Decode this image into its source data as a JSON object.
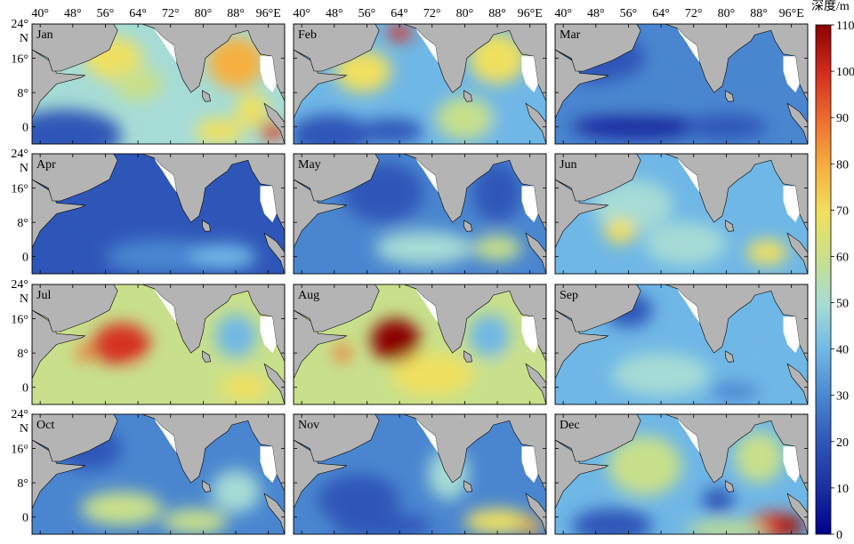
{
  "figure": {
    "x_tick_labels": [
      "40°",
      "48°",
      "56°",
      "64°",
      "72°",
      "80°",
      "88°",
      "96°E"
    ],
    "y_tick_labels": [
      "24°",
      "N",
      "16°",
      "8°",
      "0"
    ],
    "months": [
      "Jan",
      "Feb",
      "Mar",
      "Apr",
      "May",
      "Jun",
      "Jul",
      "Aug",
      "Sep",
      "Oct",
      "Nov",
      "Dec"
    ],
    "colorbar": {
      "title": "深度/m",
      "ticks": [
        "0",
        "10",
        "20",
        "30",
        "40",
        "50",
        "60",
        "70",
        "80",
        "90",
        "100",
        "110"
      ],
      "min": 0,
      "max": 110,
      "colors": [
        "#00008b",
        "#1a2fa0",
        "#2e56b8",
        "#4a86d0",
        "#6fb7e6",
        "#a6dcd6",
        "#c8e08c",
        "#f0e060",
        "#f6b040",
        "#ee7030",
        "#d63020",
        "#8b0000"
      ]
    },
    "land_color": "#b4b4b4",
    "monthly_mean_depth_m": [
      45,
      40,
      25,
      20,
      28,
      40,
      55,
      55,
      38,
      30,
      28,
      38
    ]
  }
}
